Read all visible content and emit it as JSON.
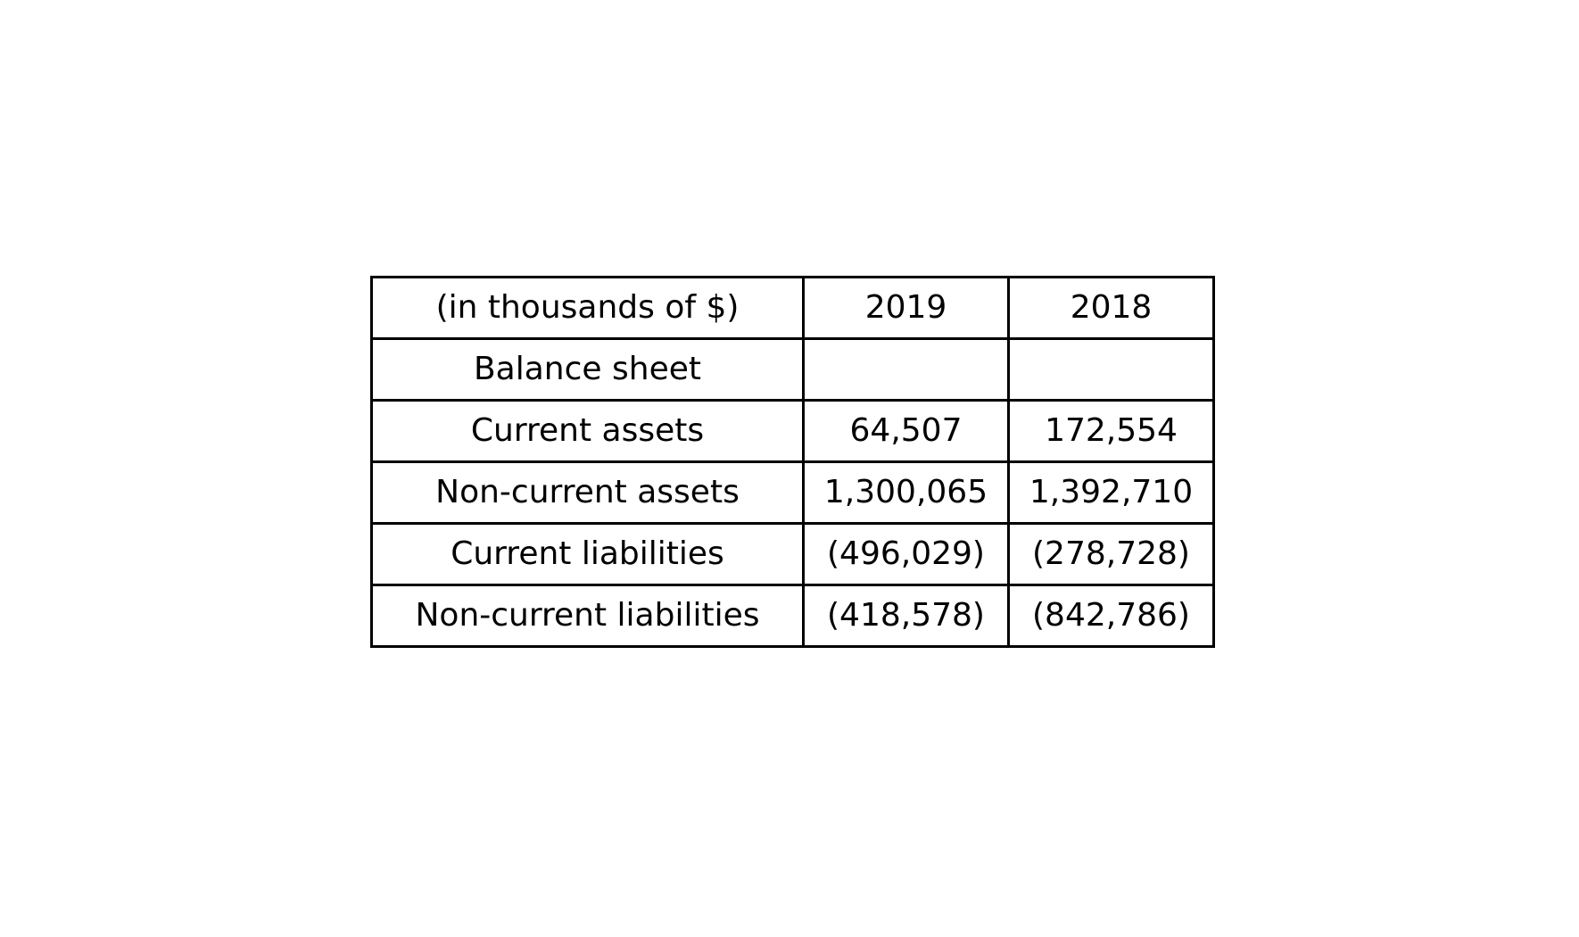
{
  "table": {
    "header": [
      "(in thousands of $)",
      "2019",
      "2018"
    ],
    "rows": [
      [
        "Balance sheet",
        "",
        ""
      ],
      [
        "Current assets",
        "64,507",
        "172,554"
      ],
      [
        "Non-current assets",
        "1,300,065",
        "1,392,710"
      ],
      [
        "Current liabilities",
        "(496,029)",
        "(278,728)"
      ],
      [
        "Non-current liabilities",
        "(418,578)",
        "(842,786)"
      ]
    ]
  }
}
